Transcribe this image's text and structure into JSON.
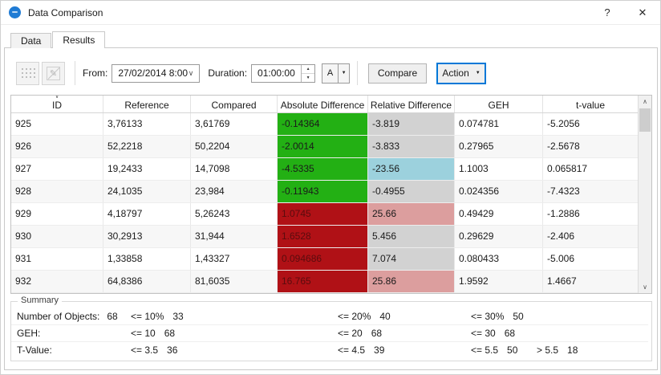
{
  "window": {
    "title": "Data Comparison",
    "help_button": "?",
    "close_button": "✕"
  },
  "tabs": {
    "data": "Data",
    "results": "Results"
  },
  "toolbar": {
    "from_label": "From:",
    "from_value": "27/02/2014 8:00",
    "duration_label": "Duration:",
    "duration_value": "01:00:00",
    "a_button_label": "A",
    "compare_label": "Compare",
    "action_label": "Action"
  },
  "icons": {
    "dropdown_arrow": "▼",
    "chevron_down": "∨",
    "spin_up": "▲",
    "spin_down": "▼",
    "scroll_up": "∧",
    "scroll_down": "∨",
    "sort_indicator": "∨",
    "edit_pencil": "✎"
  },
  "table": {
    "columns": [
      "ID",
      "Reference",
      "Compared",
      "Absolute Difference",
      "Relative Difference",
      "GEH",
      "t-value"
    ],
    "rows": [
      {
        "id": "925",
        "reference": "3,76133",
        "compared": "3,61769",
        "abs": "-0.14364",
        "abs_color": "green",
        "rel": "-3.819",
        "rel_color": "gray",
        "geh": "0.074781",
        "t": "-5.2056"
      },
      {
        "id": "926",
        "reference": "52,2218",
        "compared": "50,2204",
        "abs": "-2.0014",
        "abs_color": "green",
        "rel": "-3.833",
        "rel_color": "gray",
        "geh": "0.27965",
        "t": "-2.5678"
      },
      {
        "id": "927",
        "reference": "19,2433",
        "compared": "14,7098",
        "abs": "-4.5335",
        "abs_color": "green",
        "rel": "-23.56",
        "rel_color": "blue",
        "geh": "1.1003",
        "t": "0.065817"
      },
      {
        "id": "928",
        "reference": "24,1035",
        "compared": "23,984",
        "abs": "-0.11943",
        "abs_color": "green",
        "rel": "-0.4955",
        "rel_color": "gray",
        "geh": "0.024356",
        "t": "-7.4323"
      },
      {
        "id": "929",
        "reference": "4,18797",
        "compared": "5,26243",
        "abs": "1.0745",
        "abs_color": "red",
        "rel": "25.66",
        "rel_color": "pink",
        "geh": "0.49429",
        "t": "-1.2886"
      },
      {
        "id": "930",
        "reference": "30,2913",
        "compared": "31,944",
        "abs": "1.6528",
        "abs_color": "red",
        "rel": "5.456",
        "rel_color": "gray",
        "geh": "0.29629",
        "t": "-2.406"
      },
      {
        "id": "931",
        "reference": "1,33858",
        "compared": "1,43327",
        "abs": "0.094686",
        "abs_color": "red",
        "rel": "7.074",
        "rel_color": "gray",
        "geh": "0.080433",
        "t": "-5.006"
      },
      {
        "id": "932",
        "reference": "64,8386",
        "compared": "81,6035",
        "abs": "16.765",
        "abs_color": "red",
        "rel": "25.86",
        "rel_color": "pink",
        "geh": "1.9592",
        "t": "1.4667"
      }
    ]
  },
  "summary": {
    "legend": "Summary",
    "rows": [
      {
        "label": "Number of Objects:",
        "label_value": "68",
        "cells": [
          {
            "limit": "<= 10%",
            "value": "33"
          },
          {
            "limit": "<= 20%",
            "value": "40"
          },
          {
            "limit": "<= 30%",
            "value": "50"
          }
        ]
      },
      {
        "label": "GEH:",
        "label_value": "",
        "cells": [
          {
            "limit": "<= 10",
            "value": "68"
          },
          {
            "limit": "<= 20",
            "value": "68"
          },
          {
            "limit": "<= 30",
            "value": "68"
          }
        ]
      },
      {
        "label": "T-Value:",
        "label_value": "",
        "cells": [
          {
            "limit": "<= 3.5",
            "value": "36"
          },
          {
            "limit": "<= 4.5",
            "value": "39"
          },
          {
            "limit": "<= 5.5",
            "value": "50"
          },
          {
            "limit": "> 5.5",
            "value": "18"
          }
        ]
      }
    ]
  },
  "colors": {
    "green": "#23b014",
    "red": "#b01116",
    "red_text": "#5a0c0e",
    "blue": "#9cd1dd",
    "pink": "#dc9e9e",
    "gray": "#d2d2d2",
    "accent": "#0078d7"
  }
}
